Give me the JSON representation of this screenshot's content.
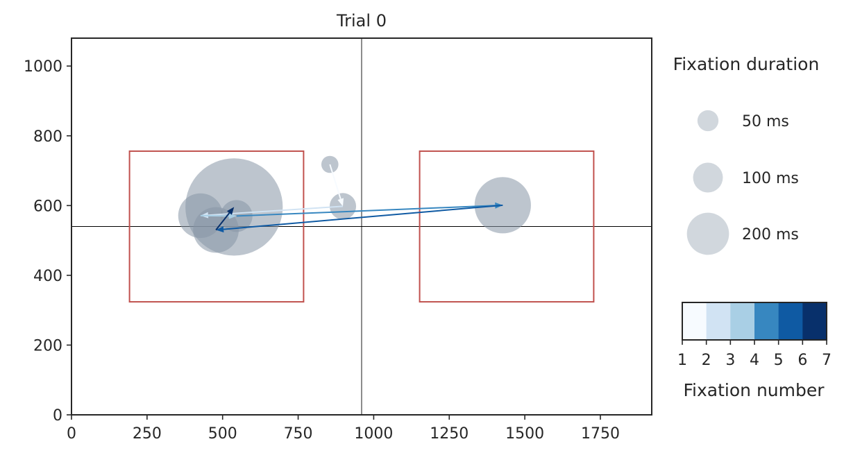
{
  "chart_data": {
    "type": "scatter",
    "title": "Trial 0",
    "xlabel": "",
    "ylabel": "",
    "xlim": [
      0,
      1920
    ],
    "ylim": [
      0,
      1080
    ],
    "x_ticks": [
      0,
      250,
      500,
      750,
      1000,
      1250,
      1500,
      1750
    ],
    "y_ticks": [
      0,
      200,
      400,
      600,
      800,
      1000
    ],
    "crosshair": {
      "x": 960,
      "y": 540
    },
    "regions": [
      {
        "x0": 192,
        "x1": 768,
        "y0": 324,
        "y1": 756,
        "color": "#c0504d"
      },
      {
        "x0": 1152,
        "x1": 1728,
        "y0": 324,
        "y1": 756,
        "color": "#c0504d"
      }
    ],
    "fixations": [
      {
        "number": 1,
        "x": 855,
        "y": 718,
        "duration_ms": 20
      },
      {
        "number": 2,
        "x": 898,
        "y": 598,
        "duration_ms": 48
      },
      {
        "number": 3,
        "x": 427,
        "y": 571,
        "duration_ms": 137
      },
      {
        "number": 4,
        "x": 546,
        "y": 570,
        "duration_ms": 70
      },
      {
        "number": 5,
        "x": 1427,
        "y": 601,
        "duration_ms": 218
      },
      {
        "number": 6,
        "x": 478,
        "y": 530,
        "duration_ms": 143
      },
      {
        "number": 7,
        "x": 538,
        "y": 596,
        "duration_ms": 650
      }
    ],
    "saccade_colors": [
      "#f7fbff",
      "#d1e3f3",
      "#a9cfe5",
      "#3787c0",
      "#0f5aa3",
      "#08306b"
    ],
    "marker_color": "#8795a6",
    "size_legend": {
      "title": "Fixation duration",
      "entries": [
        {
          "label": "50 ms",
          "duration_ms": 50
        },
        {
          "label": "100 ms",
          "duration_ms": 100
        },
        {
          "label": "200 ms",
          "duration_ms": 200
        }
      ]
    },
    "colorbar": {
      "label": "Fixation number",
      "ticks": [
        "1",
        "2",
        "3",
        "4",
        "5",
        "6",
        "7"
      ]
    }
  }
}
